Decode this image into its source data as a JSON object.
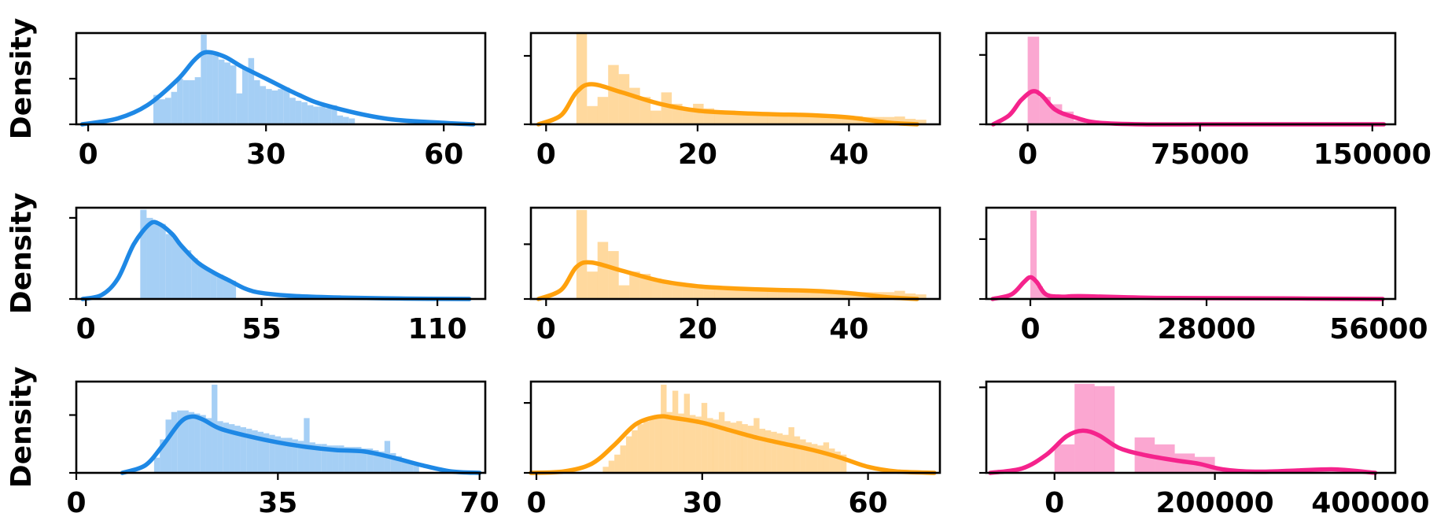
{
  "colors": {
    "blue": "#1e88e5",
    "orange": "#ffa10d",
    "pink": "#f5238c"
  },
  "chart_data": [
    {
      "type": "histogram+kde",
      "row": 0,
      "col": 0,
      "ylabel": "Density",
      "color": "#1e88e5",
      "xlim": [
        -2,
        67
      ],
      "ylim": [
        0,
        0.062
      ],
      "xticks": [
        0,
        30,
        60
      ],
      "xticklabels": [
        "0",
        "30",
        "60"
      ],
      "yticks": [
        0.031
      ],
      "bins": {
        "start": 11,
        "width": 1,
        "heights": [
          0.02,
          0.017,
          0.018,
          0.022,
          0.031,
          0.03,
          0.03,
          0.032,
          0.061,
          0.048,
          0.047,
          0.044,
          0.042,
          0.04,
          0.021,
          0.038,
          0.045,
          0.03,
          0.026,
          0.024,
          0.023,
          0.024,
          0.025,
          0.018,
          0.016,
          0.015,
          0.013,
          0.012,
          0.012,
          0.011,
          0.013,
          0.006,
          0.005,
          0.004
        ]
      },
      "kde": {
        "x": [
          -1,
          5,
          10,
          15,
          18,
          20,
          23,
          26,
          30,
          35,
          40,
          50,
          60,
          65
        ],
        "y": [
          0.0,
          0.004,
          0.013,
          0.03,
          0.044,
          0.049,
          0.046,
          0.039,
          0.031,
          0.021,
          0.013,
          0.004,
          0.001,
          0.0
        ]
      }
    },
    {
      "type": "histogram+kde",
      "row": 0,
      "col": 1,
      "ylabel": "",
      "color": "#ffa10d",
      "xlim": [
        -2,
        52
      ],
      "ylim": [
        0,
        0.2
      ],
      "xticks": [
        0,
        20,
        40
      ],
      "xticklabels": [
        "0",
        "20",
        "40"
      ],
      "yticks": [
        0.15
      ],
      "bins": {
        "start": 4,
        "width": 1.4,
        "heights": [
          0.2,
          0.04,
          0.06,
          0.13,
          0.11,
          0.08,
          0.06,
          0.03,
          0.07,
          0.045,
          0.03,
          0.045,
          0.035,
          0.03,
          0.03,
          0.025,
          0.025,
          0.02,
          0.02,
          0.02,
          0.02,
          0.02,
          0.02,
          0.018,
          0.018,
          0.018,
          0.018,
          0.016,
          0.016,
          0.016,
          0.017,
          0.012,
          0.01
        ]
      },
      "kde": {
        "x": [
          -1,
          2,
          4,
          6,
          10,
          15,
          20,
          25,
          30,
          35,
          40,
          45,
          49
        ],
        "y": [
          0.0,
          0.02,
          0.07,
          0.088,
          0.07,
          0.045,
          0.03,
          0.025,
          0.022,
          0.02,
          0.015,
          0.004,
          0.0
        ]
      }
    },
    {
      "type": "histogram+kde",
      "row": 0,
      "col": 2,
      "ylabel": "",
      "color": "#f5238c",
      "xlim": [
        -18000,
        160000
      ],
      "ylim": [
        0,
        5e-05
      ],
      "xticks": [
        0,
        75000,
        150000
      ],
      "xticklabels": [
        "0",
        "75000",
        "150000"
      ],
      "yticks": [
        3.8e-05
      ],
      "bins": {
        "start": 0,
        "width": 5000,
        "heights": [
          4.8e-05,
          1.5e-05,
          1.1e-05,
          7e-06,
          2e-06
        ]
      },
      "kde": {
        "x": [
          -15000,
          -8000,
          -3000,
          2000,
          6000,
          12000,
          20000,
          30000,
          50000,
          80000,
          120000,
          155000
        ],
        "y": [
          0.0,
          5e-06,
          1.3e-05,
          1.8e-05,
          1.6e-05,
          8e-06,
          4e-06,
          1e-06,
          0.0,
          0.0,
          0.0,
          0.0
        ]
      }
    },
    {
      "type": "histogram+kde",
      "row": 1,
      "col": 0,
      "ylabel": "Density",
      "color": "#1e88e5",
      "xlim": [
        -3,
        125
      ],
      "ylim": [
        0,
        0.045
      ],
      "xticks": [
        0,
        55,
        110
      ],
      "xticklabels": [
        "0",
        "55",
        "110"
      ],
      "yticks": [
        0.04
      ],
      "bins": {
        "start": 17,
        "width": 2,
        "heights": [
          0.044,
          0.04,
          0.038,
          0.037,
          0.032,
          0.03,
          0.026,
          0.024,
          0.02,
          0.017,
          0.015,
          0.013,
          0.012,
          0.01,
          0.009
        ]
      },
      "kde": {
        "x": [
          -1,
          5,
          10,
          15,
          20,
          23,
          27,
          30,
          35,
          40,
          45,
          50,
          55,
          65,
          80,
          100,
          120
        ],
        "y": [
          0.0,
          0.002,
          0.01,
          0.027,
          0.037,
          0.037,
          0.032,
          0.026,
          0.018,
          0.013,
          0.009,
          0.005,
          0.003,
          0.0015,
          0.0007,
          0.0002,
          0.0
        ]
      }
    },
    {
      "type": "histogram+kde",
      "row": 1,
      "col": 1,
      "ylabel": "",
      "color": "#ffa10d",
      "xlim": [
        -2,
        52
      ],
      "ylim": [
        0,
        0.2
      ],
      "xticks": [
        0,
        20,
        40
      ],
      "xticklabels": [
        "0",
        "20",
        "40"
      ],
      "yticks": [
        0.12
      ],
      "bins": {
        "start": 4,
        "width": 1.4,
        "heights": [
          0.195,
          0.06,
          0.125,
          0.105,
          0.03,
          0.06,
          0.055,
          0.045,
          0.035,
          0.03,
          0.03,
          0.03,
          0.028,
          0.025,
          0.022,
          0.022,
          0.02,
          0.02,
          0.018,
          0.018,
          0.018,
          0.016,
          0.016,
          0.016,
          0.016,
          0.015,
          0.015,
          0.015,
          0.015,
          0.015,
          0.018,
          0.012,
          0.01
        ]
      },
      "kde": {
        "x": [
          -1,
          2,
          4,
          6,
          10,
          15,
          20,
          25,
          30,
          35,
          40,
          45,
          49
        ],
        "y": [
          0.0,
          0.02,
          0.07,
          0.08,
          0.062,
          0.04,
          0.028,
          0.023,
          0.02,
          0.018,
          0.013,
          0.004,
          0.0
        ]
      }
    },
    {
      "type": "histogram+kde",
      "row": 1,
      "col": 2,
      "ylabel": "",
      "color": "#f5238c",
      "xlim": [
        -7000,
        58000
      ],
      "ylim": [
        0,
        0.00016
      ],
      "xticks": [
        0,
        28000,
        56000
      ],
      "xticklabels": [
        "0",
        "28000",
        "56000"
      ],
      "yticks": [
        0.000105
      ],
      "bins": {
        "start": 0,
        "width": 1000,
        "heights": [
          0.000155,
          2.2e-05,
          8e-06
        ]
      },
      "kde": {
        "x": [
          -6000,
          -3000,
          -1000,
          0,
          1000,
          2500,
          5000,
          8000,
          20000,
          40000,
          56000
        ],
        "y": [
          0.0,
          8e-06,
          3e-05,
          3.8e-05,
          3e-05,
          8e-06,
          4e-06,
          5e-06,
          2e-06,
          1e-06,
          0.0
        ]
      }
    },
    {
      "type": "histogram+kde",
      "row": 2,
      "col": 0,
      "ylabel": "Density",
      "color": "#1e88e5",
      "xlim": [
        0,
        71
      ],
      "ylim": [
        0,
        0.06
      ],
      "xticks": [
        0,
        35,
        70
      ],
      "xticklabels": [
        "0",
        "35",
        "70"
      ],
      "yticks": [
        0.038
      ],
      "bins": {
        "start": 13.5,
        "width": 1,
        "heights": [
          0.01,
          0.022,
          0.035,
          0.04,
          0.041,
          0.041,
          0.04,
          0.039,
          0.038,
          0.036,
          0.058,
          0.034,
          0.033,
          0.032,
          0.031,
          0.03,
          0.029,
          0.028,
          0.027,
          0.026,
          0.025,
          0.024,
          0.023,
          0.023,
          0.022,
          0.021,
          0.036,
          0.02,
          0.019,
          0.019,
          0.018,
          0.018,
          0.018,
          0.017,
          0.017,
          0.017,
          0.016,
          0.016,
          0.015,
          0.014,
          0.021,
          0.013,
          0.011,
          0.009,
          0.008,
          0.006
        ]
      },
      "kde": {
        "x": [
          8,
          12,
          15,
          18,
          20,
          22,
          25,
          30,
          35,
          40,
          45,
          50,
          55,
          60,
          65,
          70
        ],
        "y": [
          0.0,
          0.005,
          0.018,
          0.033,
          0.037,
          0.035,
          0.029,
          0.024,
          0.02,
          0.017,
          0.015,
          0.014,
          0.01,
          0.005,
          0.001,
          0.0
        ]
      }
    },
    {
      "type": "histogram+kde",
      "row": 2,
      "col": 1,
      "ylabel": "",
      "color": "#ffa10d",
      "xlim": [
        -1,
        73
      ],
      "ylim": [
        0,
        0.06
      ],
      "xticks": [
        0,
        30,
        60
      ],
      "xticklabels": [
        "0",
        "30",
        "60"
      ],
      "yticks": [
        0.046
      ],
      "bins": {
        "start": 12,
        "width": 1.05,
        "heights": [
          0.004,
          0.008,
          0.012,
          0.018,
          0.024,
          0.028,
          0.032,
          0.034,
          0.036,
          0.038,
          0.058,
          0.04,
          0.054,
          0.039,
          0.052,
          0.038,
          0.037,
          0.046,
          0.036,
          0.035,
          0.04,
          0.034,
          0.033,
          0.034,
          0.032,
          0.031,
          0.036,
          0.029,
          0.028,
          0.027,
          0.026,
          0.025,
          0.03,
          0.024,
          0.022,
          0.02,
          0.019,
          0.018,
          0.02,
          0.016,
          0.014,
          0.012
        ]
      },
      "kde": {
        "x": [
          -1,
          5,
          10,
          14,
          18,
          22,
          25,
          30,
          35,
          40,
          45,
          50,
          55,
          60,
          65,
          72
        ],
        "y": [
          0.0,
          0.001,
          0.006,
          0.018,
          0.032,
          0.037,
          0.036,
          0.033,
          0.028,
          0.023,
          0.019,
          0.015,
          0.01,
          0.004,
          0.001,
          0.0
        ]
      }
    },
    {
      "type": "histogram+kde",
      "row": 2,
      "col": 2,
      "ylabel": "",
      "color": "#f5238c",
      "xlim": [
        -85000,
        425000
      ],
      "ylim": [
        0,
        8e-06
      ],
      "xticks": [
        0,
        200000,
        400000
      ],
      "xticklabels": [
        "0",
        "200000",
        "400000"
      ],
      "yticks": [
        7.5e-06
      ],
      "bins": {
        "start": 0,
        "width": 25000,
        "heights": [
          2.5e-06,
          7.8e-06,
          7.6e-06,
          0.0,
          3.1e-06,
          2.5e-06,
          1.7e-06,
          1.4e-06,
          3e-07
        ]
      },
      "kde": {
        "x": [
          -80000,
          -40000,
          -10000,
          15000,
          35000,
          55000,
          80000,
          110000,
          150000,
          180000,
          210000,
          250000,
          300000,
          350000,
          400000
        ],
        "y": [
          0.0,
          4e-07,
          1.6e-06,
          3.2e-06,
          3.7e-06,
          3.3e-06,
          2.2e-06,
          1.6e-06,
          1.1e-06,
          8e-07,
          3e-07,
          1e-07,
          2e-07,
          3e-07,
          0.0
        ]
      }
    }
  ]
}
